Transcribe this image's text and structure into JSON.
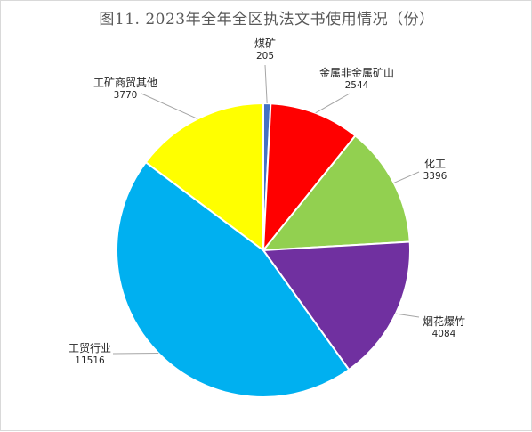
{
  "chart_data": {
    "type": "pie",
    "title": "图11. 2023年全年全区执法文书使用情况（份）",
    "slices": [
      {
        "name": "煤矿",
        "value": 205,
        "color": "#4472c4"
      },
      {
        "name": "金属非金属矿山",
        "value": 2544,
        "color": "#ff0000"
      },
      {
        "name": "化工",
        "value": 3396,
        "color": "#92d050"
      },
      {
        "name": "烟花爆竹",
        "value": 4084,
        "color": "#7030a0"
      },
      {
        "name": "工贸行业",
        "value": 11516,
        "color": "#00b0f0"
      },
      {
        "name": "工矿商贸其他",
        "value": 3770,
        "color": "#ffff00"
      }
    ],
    "start_angle": "12 o'clock",
    "direction": "clockwise",
    "legend": "none",
    "data_labels": "outside with leader lines"
  }
}
